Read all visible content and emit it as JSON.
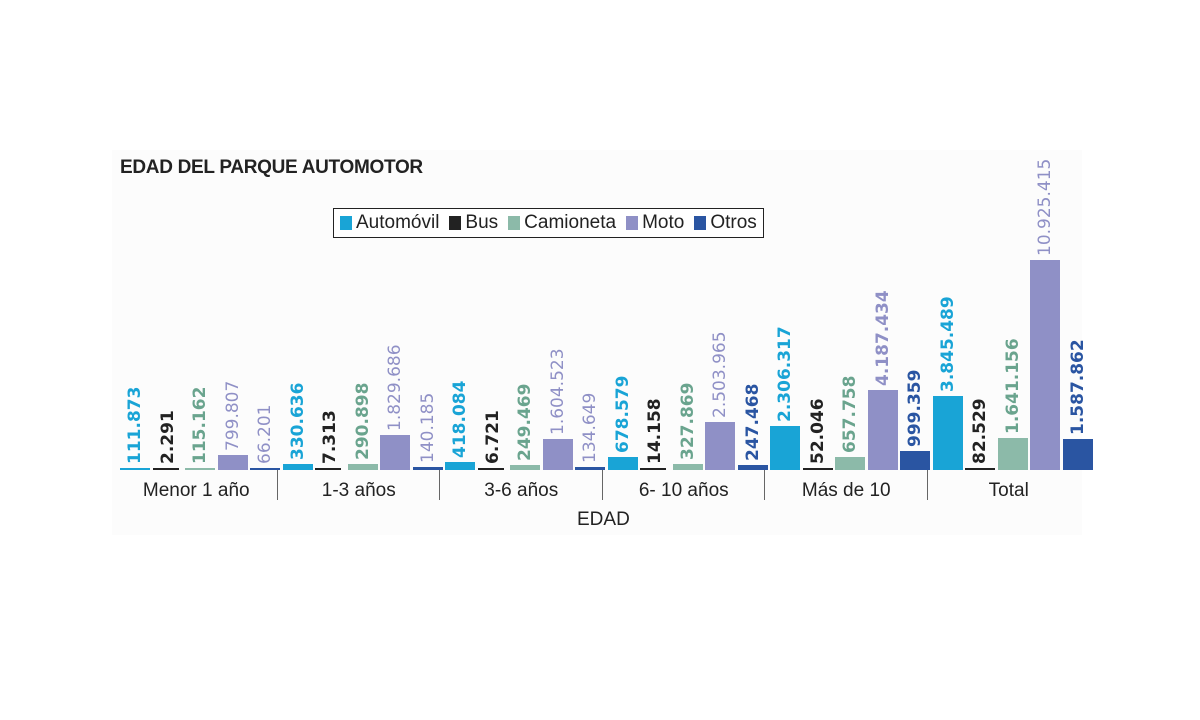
{
  "title": "EDAD DEL PARQUE AUTOMOTOR",
  "legend": [
    {
      "label": "Automóvil",
      "color": "#19a4d6"
    },
    {
      "label": "Bus",
      "color": "#222222"
    },
    {
      "label": "Camioneta",
      "color": "#8cbaa9"
    },
    {
      "label": "Moto",
      "color": "#8f90c6"
    },
    {
      "label": "Otros",
      "color": "#2a55a2"
    }
  ],
  "xaxis_title": "EDAD",
  "chart_data": {
    "type": "bar",
    "title": "EDAD DEL PARQUE AUTOMOTOR",
    "xlabel": "EDAD",
    "ylabel": "",
    "categories": [
      "Menor 1 año",
      "1-3 años",
      "3-6 años",
      "6- 10  años",
      "Más de 10",
      "Total"
    ],
    "series": [
      {
        "name": "Automóvil",
        "color": "#19a4d6",
        "values": [
          111873,
          330636,
          418084,
          678579,
          2306317,
          3845489
        ],
        "labels": [
          "111.873",
          "330.636",
          "418.084",
          "678.579",
          "2.306.317",
          "3.845.489"
        ]
      },
      {
        "name": "Bus",
        "color": "#222222",
        "values": [
          2291,
          7313,
          6721,
          14158,
          52046,
          82529
        ],
        "labels": [
          "2.291",
          "7.313",
          "6.721",
          "14.158",
          "52.046",
          "82.529"
        ]
      },
      {
        "name": "Camioneta",
        "color": "#8cbaa9",
        "values": [
          115162,
          290898,
          249469,
          327869,
          657758,
          1641156
        ],
        "labels": [
          "115.162",
          "290.898",
          "249.469",
          "327.869",
          "657.758",
          "1.641.156"
        ]
      },
      {
        "name": "Moto",
        "color": "#8f90c6",
        "values": [
          799807,
          1829686,
          1604523,
          2503965,
          4187434,
          10925415
        ],
        "labels": [
          "799.807",
          "1.829.686",
          "1.604.523",
          "2.503.965",
          "4.187.434",
          "10.925.415"
        ]
      },
      {
        "name": "Otros",
        "color": "#2a55a2",
        "values": [
          66201,
          140185,
          134649,
          247468,
          999359,
          1587862
        ],
        "labels": [
          "66.201",
          "140.185",
          "134.649",
          "247.468",
          "999.359",
          "1.587.862"
        ]
      }
    ],
    "label_colors": {
      "Automóvil": "#19a4d6",
      "Bus": "#222222",
      "Camioneta": "#6aa48e",
      "Moto": "#8f90c6",
      "Otros": "#2a55a2"
    },
    "grid": false,
    "legend_position": "top",
    "data_labels": "rotated vertical above bars"
  }
}
